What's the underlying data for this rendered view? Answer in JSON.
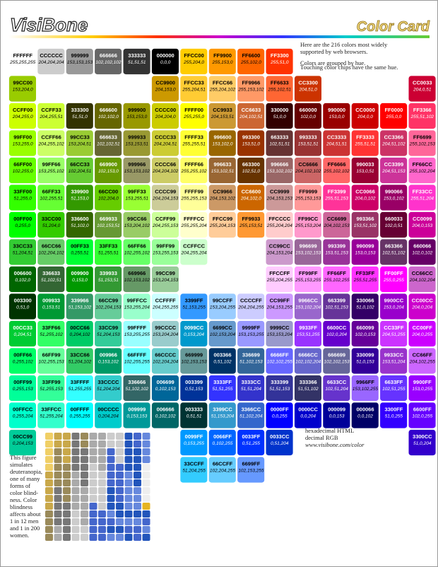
{
  "header": {
    "logo": "VisiBone",
    "title": "Color Card"
  },
  "intro": [
    "Here are the 216 colors most widely",
    "supported by web browsers.",
    "Colors are grouped by hue.",
    "Touching color chips have the same hue."
  ],
  "legend": [
    "hexadecimal HTML",
    "decimal RGB",
    "www.visibone.com/color"
  ],
  "note": [
    "This figure",
    "simulates",
    "deuteranopia,",
    "one of many",
    "forms of",
    "color blind-",
    "ness. Color",
    "blindness",
    "affects about",
    "1 in 12 men",
    "and 1 in 200",
    "women."
  ],
  "chips": {
    "rows": [
      [
        {
          "hex": "FFFFFF",
          "rgb": "255,255,255"
        },
        {
          "hex": "CCCCCC",
          "rgb": "204,204,204"
        },
        {
          "hex": "999999",
          "rgb": "153,153,153"
        },
        {
          "hex": "666666",
          "rgb": "102,102,102"
        },
        {
          "hex": "333333",
          "rgb": "51,51,51"
        },
        {
          "hex": "000000",
          "rgb": "0,0,0"
        },
        {
          "hex": "FFCC00",
          "rgb": "255,204,0"
        },
        {
          "hex": "FF9900",
          "rgb": "255,153,0"
        },
        {
          "hex": "FF6600",
          "rgb": "255,102,0"
        },
        {
          "hex": "FF3300",
          "rgb": "255,51,0"
        },
        null,
        null,
        null,
        null,
        null
      ],
      [
        {
          "hex": "99CC00",
          "rgb": "153,204,0"
        },
        null,
        null,
        null,
        null,
        {
          "hex": "CC9900",
          "rgb": "204,153,0"
        },
        {
          "hex": "FFCC33",
          "rgb": "255,204,51"
        },
        {
          "hex": "FFCC66",
          "rgb": "255,204,102"
        },
        {
          "hex": "FF9966",
          "rgb": "255,153,102"
        },
        {
          "hex": "FF6633",
          "rgb": "255,102,51"
        },
        {
          "hex": "CC3300",
          "rgb": "204,51,0"
        },
        null,
        null,
        null,
        {
          "hex": "CC0033",
          "rgb": "204,0,51"
        }
      ],
      [
        {
          "hex": "CCFF00",
          "rgb": "204,255,0"
        },
        {
          "hex": "CCFF33",
          "rgb": "204,255,51"
        },
        {
          "hex": "333300",
          "rgb": "51,51,0"
        },
        {
          "hex": "666600",
          "rgb": "102,102,0"
        },
        {
          "hex": "999900",
          "rgb": "153,153,0"
        },
        {
          "hex": "CCCC00",
          "rgb": "204,204,0"
        },
        {
          "hex": "FFFF00",
          "rgb": "255,255,0"
        },
        {
          "hex": "CC9933",
          "rgb": "204,153,51"
        },
        {
          "hex": "CC6633",
          "rgb": "204,102,51"
        },
        {
          "hex": "330000",
          "rgb": "51,0,0"
        },
        {
          "hex": "660000",
          "rgb": "102,0,0"
        },
        {
          "hex": "990000",
          "rgb": "153,0,0"
        },
        {
          "hex": "CC0000",
          "rgb": "204,0,0"
        },
        {
          "hex": "FF0000",
          "rgb": "255,0,0"
        },
        {
          "hex": "FF3366",
          "rgb": "255,51,102"
        }
      ],
      [
        {
          "hex": "99FF00",
          "rgb": "153,255,0"
        },
        {
          "hex": "CCFF66",
          "rgb": "204,255,102"
        },
        {
          "hex": "99CC33",
          "rgb": "153,204,51"
        },
        {
          "hex": "666633",
          "rgb": "102,102,51"
        },
        {
          "hex": "999933",
          "rgb": "153,153,51"
        },
        {
          "hex": "CCCC33",
          "rgb": "204,204,51"
        },
        {
          "hex": "FFFF33",
          "rgb": "255,255,51"
        },
        {
          "hex": "996600",
          "rgb": "153,102,0"
        },
        {
          "hex": "993300",
          "rgb": "153,51,0"
        },
        {
          "hex": "663333",
          "rgb": "102,51,51"
        },
        {
          "hex": "993333",
          "rgb": "153,51,51"
        },
        {
          "hex": "CC3333",
          "rgb": "204,51,51"
        },
        {
          "hex": "FF3333",
          "rgb": "255,51,51"
        },
        {
          "hex": "CC3366",
          "rgb": "204,51,102"
        },
        {
          "hex": "FF6699",
          "rgb": "255,102,153"
        }
      ],
      [
        {
          "hex": "66FF00",
          "rgb": "102,255,0"
        },
        {
          "hex": "99FF66",
          "rgb": "153,255,102"
        },
        {
          "hex": "66CC33",
          "rgb": "102,204,51"
        },
        {
          "hex": "669900",
          "rgb": "102,153,0"
        },
        {
          "hex": "999966",
          "rgb": "153,153,102"
        },
        {
          "hex": "CCCC66",
          "rgb": "204,204,102"
        },
        {
          "hex": "FFFF66",
          "rgb": "255,255,102"
        },
        {
          "hex": "996633",
          "rgb": "153,102,51"
        },
        {
          "hex": "663300",
          "rgb": "102,51,0"
        },
        {
          "hex": "996666",
          "rgb": "153,102,102"
        },
        {
          "hex": "CC6666",
          "rgb": "204,102,102"
        },
        {
          "hex": "FF6666",
          "rgb": "255,102,102"
        },
        {
          "hex": "990033",
          "rgb": "153,0,51"
        },
        {
          "hex": "CC3399",
          "rgb": "204,51,153"
        },
        {
          "hex": "FF66CC",
          "rgb": "255,102,204"
        }
      ],
      [
        {
          "hex": "33FF00",
          "rgb": "51,255,0"
        },
        {
          "hex": "66FF33",
          "rgb": "102,255,51"
        },
        {
          "hex": "339900",
          "rgb": "51,153,0"
        },
        {
          "hex": "66CC00",
          "rgb": "102,204,0"
        },
        {
          "hex": "99FF33",
          "rgb": "153,255,51"
        },
        {
          "hex": "CCCC99",
          "rgb": "204,204,153"
        },
        {
          "hex": "FFFF99",
          "rgb": "255,255,153"
        },
        {
          "hex": "CC9966",
          "rgb": "204,153,102"
        },
        {
          "hex": "CC6600",
          "rgb": "204,102,0"
        },
        {
          "hex": "CC9999",
          "rgb": "204,153,153"
        },
        {
          "hex": "FF9999",
          "rgb": "255,153,153"
        },
        {
          "hex": "FF3399",
          "rgb": "255,51,153"
        },
        {
          "hex": "CC0066",
          "rgb": "204,0,102"
        },
        {
          "hex": "990066",
          "rgb": "153,0,102"
        },
        {
          "hex": "FF33CC",
          "rgb": "255,51,204"
        }
      ],
      [
        {
          "hex": "00FF00",
          "rgb": "0,255,0"
        },
        {
          "hex": "33CC00",
          "rgb": "51,204,0"
        },
        {
          "hex": "336600",
          "rgb": "51,102,0"
        },
        {
          "hex": "669933",
          "rgb": "102,153,51"
        },
        {
          "hex": "99CC66",
          "rgb": "153,204,102"
        },
        {
          "hex": "CCFF99",
          "rgb": "204,255,153"
        },
        {
          "hex": "FFFFCC",
          "rgb": "255,255,204"
        },
        {
          "hex": "FFCC99",
          "rgb": "255,204,153"
        },
        {
          "hex": "FF9933",
          "rgb": "255,153,51"
        },
        {
          "hex": "FFCCCC",
          "rgb": "255,204,204"
        },
        {
          "hex": "FF99CC",
          "rgb": "255,153,204"
        },
        {
          "hex": "CC6699",
          "rgb": "204,102,153"
        },
        {
          "hex": "993366",
          "rgb": "153,51,102"
        },
        {
          "hex": "660033",
          "rgb": "102,0,51"
        },
        {
          "hex": "CC0099",
          "rgb": "204,0,153"
        }
      ],
      [
        {
          "hex": "33CC33",
          "rgb": "51,204,51"
        },
        {
          "hex": "66CC66",
          "rgb": "102,204,102"
        },
        {
          "hex": "00FF33",
          "rgb": "0,255,51"
        },
        {
          "hex": "33FF33",
          "rgb": "51,255,51"
        },
        {
          "hex": "66FF66",
          "rgb": "102,255,102"
        },
        {
          "hex": "99FF99",
          "rgb": "153,255,153"
        },
        {
          "hex": "CCFFCC",
          "rgb": "204,255,204"
        },
        null,
        null,
        {
          "hex": "CC99CC",
          "rgb": "204,153,204"
        },
        {
          "hex": "996699",
          "rgb": "153,102,153"
        },
        {
          "hex": "993399",
          "rgb": "153,51,153"
        },
        {
          "hex": "990099",
          "rgb": "153,0,153"
        },
        {
          "hex": "663366",
          "rgb": "102,51,102"
        },
        {
          "hex": "660066",
          "rgb": "102,0,102"
        }
      ],
      [
        {
          "hex": "006600",
          "rgb": "0,102,0"
        },
        {
          "hex": "336633",
          "rgb": "51,102,51"
        },
        {
          "hex": "009900",
          "rgb": "0,153,0"
        },
        {
          "hex": "339933",
          "rgb": "51,153,51"
        },
        {
          "hex": "669966",
          "rgb": "102,153,102"
        },
        {
          "hex": "99CC99",
          "rgb": "153,204,153"
        },
        null,
        null,
        null,
        {
          "hex": "FFCCFF",
          "rgb": "255,204,255"
        },
        {
          "hex": "FF99FF",
          "rgb": "255,153,255"
        },
        {
          "hex": "FF66FF",
          "rgb": "255,102,255"
        },
        {
          "hex": "FF33FF",
          "rgb": "255,51,255"
        },
        {
          "hex": "FF00FF",
          "rgb": "255,0,255"
        },
        {
          "hex": "CC66CC",
          "rgb": "204,102,204"
        }
      ],
      [
        {
          "hex": "003300",
          "rgb": "0,51,0"
        },
        {
          "hex": "009933",
          "rgb": "0,153,51"
        },
        {
          "hex": "339966",
          "rgb": "51,153,102"
        },
        {
          "hex": "66CC99",
          "rgb": "102,204,153"
        },
        {
          "hex": "99FFCC",
          "rgb": "153,255,204"
        },
        {
          "hex": "CCFFFF",
          "rgb": "204,255,255"
        },
        {
          "hex": "3399FF",
          "rgb": "51,153,255"
        },
        {
          "hex": "99CCFF",
          "rgb": "153,204,255"
        },
        {
          "hex": "CCCCFF",
          "rgb": "204,204,255"
        },
        {
          "hex": "CC99FF",
          "rgb": "204,153,255"
        },
        {
          "hex": "9966CC",
          "rgb": "153,102,204"
        },
        {
          "hex": "663399",
          "rgb": "102,51,153"
        },
        {
          "hex": "330066",
          "rgb": "51,0,102"
        },
        {
          "hex": "9900CC",
          "rgb": "153,0,204"
        },
        {
          "hex": "CC00CC",
          "rgb": "204,0,204"
        }
      ],
      [
        {
          "hex": "00CC33",
          "rgb": "0,204,51"
        },
        {
          "hex": "33FF66",
          "rgb": "51,255,102"
        },
        {
          "hex": "00CC66",
          "rgb": "0,204,102"
        },
        {
          "hex": "33CC99",
          "rgb": "51,204,153"
        },
        {
          "hex": "99FFFF",
          "rgb": "153,255,255"
        },
        {
          "hex": "99CCCC",
          "rgb": "153,204,204"
        },
        {
          "hex": "0099CC",
          "rgb": "0,153,204"
        },
        {
          "hex": "6699CC",
          "rgb": "102,153,204"
        },
        {
          "hex": "9999FF",
          "rgb": "153,153,255"
        },
        {
          "hex": "9999CC",
          "rgb": "153,153,204"
        },
        {
          "hex": "9933FF",
          "rgb": "153,51,255"
        },
        {
          "hex": "6600CC",
          "rgb": "102,0,204"
        },
        {
          "hex": "660099",
          "rgb": "102,0,153"
        },
        {
          "hex": "CC33FF",
          "rgb": "204,51,255"
        },
        {
          "hex": "CC00FF",
          "rgb": "204,0,255"
        }
      ],
      [
        {
          "hex": "00FF66",
          "rgb": "0,255,102"
        },
        {
          "hex": "66FF99",
          "rgb": "102,255,153"
        },
        {
          "hex": "33CC66",
          "rgb": "51,204,102"
        },
        {
          "hex": "009966",
          "rgb": "0,153,102"
        },
        {
          "hex": "66FFFF",
          "rgb": "102,255,255"
        },
        {
          "hex": "66CCCC",
          "rgb": "102,204,204"
        },
        {
          "hex": "669999",
          "rgb": "102,153,153"
        },
        {
          "hex": "003366",
          "rgb": "0,51,102"
        },
        {
          "hex": "336699",
          "rgb": "51,102,153"
        },
        {
          "hex": "6666FF",
          "rgb": "102,102,255"
        },
        {
          "hex": "6666CC",
          "rgb": "102,102,204"
        },
        {
          "hex": "666699",
          "rgb": "102,102,153"
        },
        {
          "hex": "330099",
          "rgb": "51,0,153"
        },
        {
          "hex": "9933CC",
          "rgb": "153,51,204"
        },
        {
          "hex": "CC66FF",
          "rgb": "204,102,255"
        }
      ],
      [
        {
          "hex": "00FF99",
          "rgb": "0,255,153"
        },
        {
          "hex": "33FF99",
          "rgb": "51,255,153"
        },
        {
          "hex": "33FFFF",
          "rgb": "51,255,255"
        },
        {
          "hex": "33CCCC",
          "rgb": "51,204,204"
        },
        {
          "hex": "336666",
          "rgb": "51,102,102"
        },
        {
          "hex": "006699",
          "rgb": "0,102,153"
        },
        {
          "hex": "003399",
          "rgb": "0,51,153"
        },
        {
          "hex": "3333FF",
          "rgb": "51,51,255"
        },
        {
          "hex": "3333CC",
          "rgb": "51,51,204"
        },
        {
          "hex": "333399",
          "rgb": "51,51,153"
        },
        {
          "hex": "333366",
          "rgb": "51,51,102"
        },
        {
          "hex": "6633CC",
          "rgb": "102,51,204"
        },
        {
          "hex": "9966FF",
          "rgb": "153,102,255"
        },
        {
          "hex": "6633FF",
          "rgb": "102,51,255"
        },
        {
          "hex": "9900FF",
          "rgb": "153,0,255"
        }
      ],
      [
        {
          "hex": "00FFCC",
          "rgb": "0,255,204"
        },
        {
          "hex": "33FFCC",
          "rgb": "51,255,204"
        },
        {
          "hex": "00FFFF",
          "rgb": "0,255,255"
        },
        {
          "hex": "00CCCC",
          "rgb": "0,204,204"
        },
        {
          "hex": "009999",
          "rgb": "0,153,153"
        },
        {
          "hex": "006666",
          "rgb": "0,102,102"
        },
        {
          "hex": "003333",
          "rgb": "0,51,51"
        },
        {
          "hex": "3399CC",
          "rgb": "51,153,204"
        },
        {
          "hex": "3366CC",
          "rgb": "51,102,204"
        },
        {
          "hex": "0000FF",
          "rgb": "0,0,255"
        },
        {
          "hex": "0000CC",
          "rgb": "0,0,204"
        },
        {
          "hex": "000099",
          "rgb": "0,0,153"
        },
        {
          "hex": "000066",
          "rgb": "0,0,102"
        },
        {
          "hex": "3300FF",
          "rgb": "51,0,255"
        },
        {
          "hex": "6600FF",
          "rgb": "102,0,255"
        }
      ],
      [
        {
          "hex": "00CC99",
          "rgb": "0,204,153"
        },
        null,
        null,
        null,
        null,
        null,
        {
          "hex": "0099FF",
          "rgb": "0,153,255"
        },
        {
          "hex": "0066FF",
          "rgb": "0,102,255"
        },
        {
          "hex": "0033FF",
          "rgb": "0,51,255"
        },
        {
          "hex": "0033CC",
          "rgb": "0,51,204"
        },
        null,
        null,
        null,
        null,
        {
          "hex": "3300CC",
          "rgb": "51,0,204"
        }
      ],
      [
        null,
        null,
        null,
        null,
        null,
        null,
        {
          "hex": "33CCFF",
          "rgb": "51,204,255"
        },
        {
          "hex": "66CCFF",
          "rgb": "102,204,255"
        },
        {
          "hex": "6699FF",
          "rgb": "102,153,255"
        },
        null,
        null,
        null,
        null,
        null,
        null
      ]
    ]
  }
}
